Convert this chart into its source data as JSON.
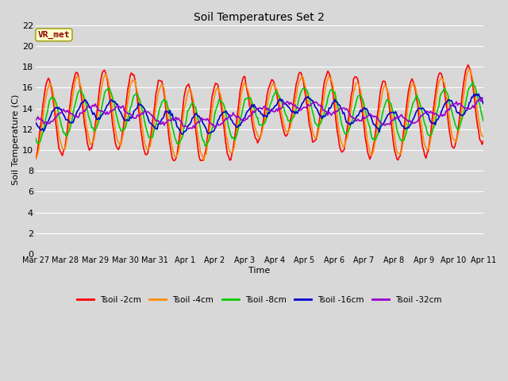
{
  "title": "Soil Temperatures Set 2",
  "xlabel": "Time",
  "ylabel": "Soil Temperature (C)",
  "ylim": [
    0,
    22
  ],
  "yticks": [
    0,
    2,
    4,
    6,
    8,
    10,
    12,
    14,
    16,
    18,
    20,
    22
  ],
  "bg_color": "#d8d8d8",
  "plot_bg_color": "#d8d8d8",
  "grid_color": "#ffffff",
  "annotation_text": "VR_met",
  "annotation_box_color": "#ffffcc",
  "annotation_text_color": "#8b0000",
  "series": [
    {
      "label": "Tsoil -2cm",
      "color": "#ff0000",
      "lw": 1.2
    },
    {
      "label": "Tsoil -4cm",
      "color": "#ff8c00",
      "lw": 1.2
    },
    {
      "label": "Tsoil -8cm",
      "color": "#00cc00",
      "lw": 1.2
    },
    {
      "label": "Tsoil -16cm",
      "color": "#0000cc",
      "lw": 1.2
    },
    {
      "label": "Tsoil -32cm",
      "color": "#9900cc",
      "lw": 1.2
    }
  ],
  "x_tick_labels": [
    "Mar 27",
    "Mar 28",
    "Mar 29",
    "Mar 30",
    "Mar 31",
    "Apr 1",
    "Apr 2",
    "Apr 3",
    "Apr 4",
    "Apr 5",
    "Apr 6",
    "Apr 7",
    "Apr 8",
    "Apr 9",
    "Apr 10",
    "Apr 11"
  ]
}
